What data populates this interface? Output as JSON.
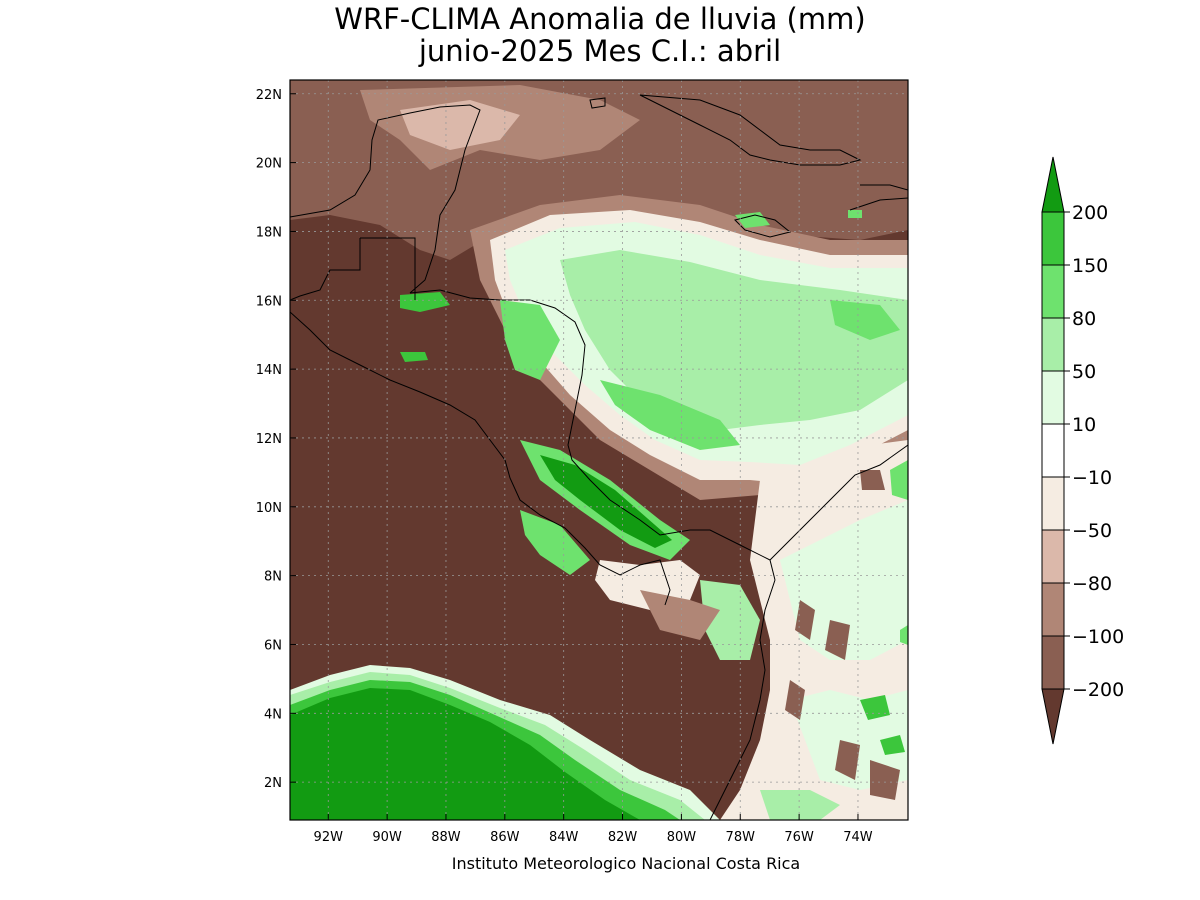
{
  "title_line1": "WRF-CLIMA Anomalia de lluvia (mm)",
  "title_line2": "junio-2025 Mes C.I.: abril",
  "credit": "Instituto Meteorologico Nacional Costa Rica",
  "map": {
    "lon_range": [
      -93.3,
      -72.3
    ],
    "lat_range": [
      0.9,
      22.4
    ],
    "x_ticks": [
      "92W",
      "90W",
      "88W",
      "86W",
      "84W",
      "82W",
      "80W",
      "78W",
      "76W",
      "74W"
    ],
    "y_ticks": [
      "2N",
      "4N",
      "6N",
      "8N",
      "10N",
      "12N",
      "14N",
      "16N",
      "18N",
      "20N",
      "22N"
    ],
    "grid": true
  },
  "colorbar": {
    "labels": [
      "200",
      "150",
      "80",
      "50",
      "10",
      "-10",
      "-50",
      "-80",
      "-100",
      "-200"
    ],
    "colors": [
      "#129b12",
      "#3cc63c",
      "#6ee26e",
      "#a8eea8",
      "#e2fbe2",
      "#ffffff",
      "#f5ece2",
      "#dbb8aa",
      "#b08676",
      "#8a5f52",
      "#63392f"
    ]
  }
}
